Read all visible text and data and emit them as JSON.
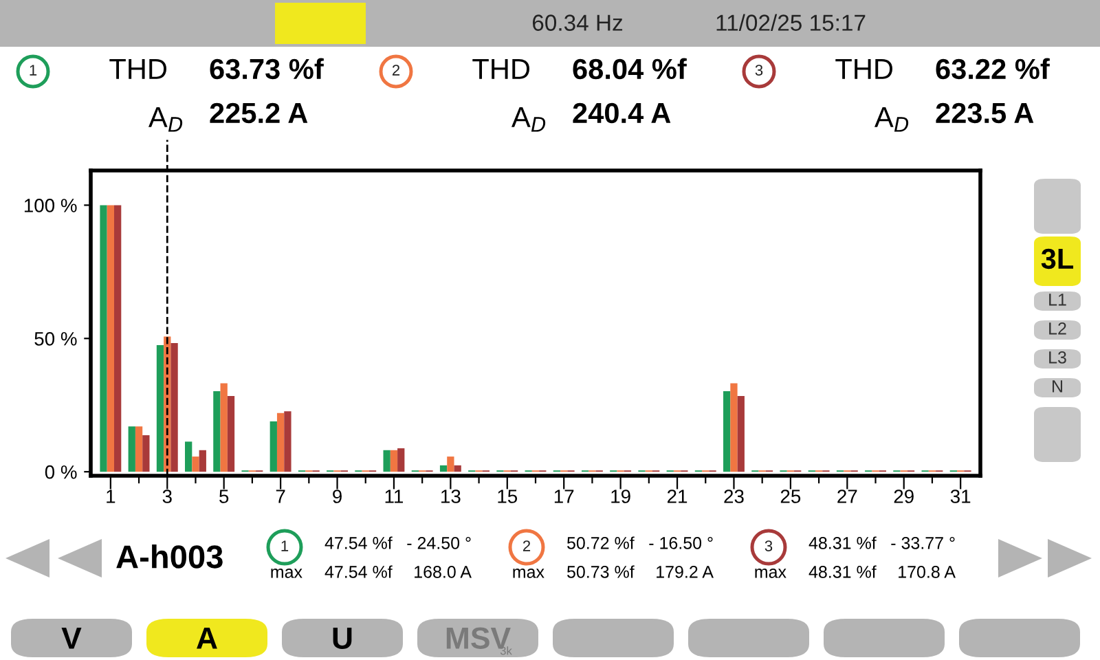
{
  "chart_data": {
    "type": "bar",
    "categories": [
      "1",
      null,
      "3",
      null,
      "5",
      null,
      "7",
      null,
      "9",
      null,
      "11",
      null,
      "13",
      null,
      "15",
      null,
      "17",
      null,
      "19",
      null,
      "21",
      null,
      "23",
      null,
      "25",
      null,
      "27",
      null,
      "29",
      null,
      "31"
    ],
    "series": [
      {
        "name": "1",
        "color": "#1e9e5a",
        "values": [
          100,
          17.0,
          47.5,
          11.3,
          30.2,
          0.5,
          18.9,
          0.5,
          0.5,
          0.5,
          8.1,
          0.5,
          2.4,
          0.5,
          0.5,
          0.5,
          0.5,
          0.5,
          0.5,
          0.5,
          0.5,
          0.5,
          30.2,
          0.5,
          0.5,
          0.5,
          0.5,
          0.5,
          0.5,
          0.5,
          0.5
        ]
      },
      {
        "name": "2",
        "color": "#f07642",
        "values": [
          100,
          17.0,
          50.7,
          5.7,
          33.2,
          0.5,
          22.0,
          0.5,
          0.5,
          0.5,
          8.1,
          0.5,
          5.7,
          0.5,
          0.5,
          0.5,
          0.5,
          0.5,
          0.5,
          0.5,
          0.5,
          0.5,
          33.2,
          0.5,
          0.5,
          0.5,
          0.5,
          0.5,
          0.5,
          0.5,
          0.5
        ]
      },
      {
        "name": "3",
        "color": "#a83a3a",
        "values": [
          100,
          13.7,
          48.3,
          8.1,
          28.4,
          0.5,
          22.7,
          0.5,
          0.5,
          0.5,
          8.8,
          0.5,
          2.4,
          0.5,
          0.5,
          0.5,
          0.5,
          0.5,
          0.5,
          0.5,
          0.5,
          0.5,
          28.4,
          0.5,
          0.5,
          0.5,
          0.5,
          0.5,
          0.5,
          0.5,
          0.5
        ]
      }
    ],
    "ylim": [
      -1.5,
      113
    ],
    "yticks": [
      {
        "value": 0,
        "label": "0 %"
      },
      {
        "value": 50,
        "label": "50 %"
      },
      {
        "value": 100,
        "label": "100 %"
      }
    ],
    "grid": false,
    "ref_lines": [
      {
        "axis": "x",
        "value": "3",
        "line_style": "dashed",
        "color": "#000000"
      }
    ],
    "annotations": [
      "60.34 Hz",
      "11/02/25 15:17",
      "THD",
      "63.73 %f",
      "A$_{D}$",
      "225.2 A",
      "THD",
      "68.04 %f",
      "A$_{D}$",
      "240.4 A",
      "THD",
      "63.22 %f",
      "A$_{D}$",
      "223.5 A",
      "A-h003",
      "47.54 %f",
      "- 24.50 °",
      "max",
      "47.54 %f",
      "168.0 A",
      "50.72 %f",
      "- 16.50 °",
      "max",
      "50.73 %f",
      "179.2 A",
      "48.31 %f",
      "- 33.77 °",
      "max",
      "48.31 %f",
      "170.8 A",
      "3L",
      "L1",
      "L2",
      "L3",
      "N",
      "V",
      "A",
      "U",
      "MSV",
      "3k"
    ]
  }
}
